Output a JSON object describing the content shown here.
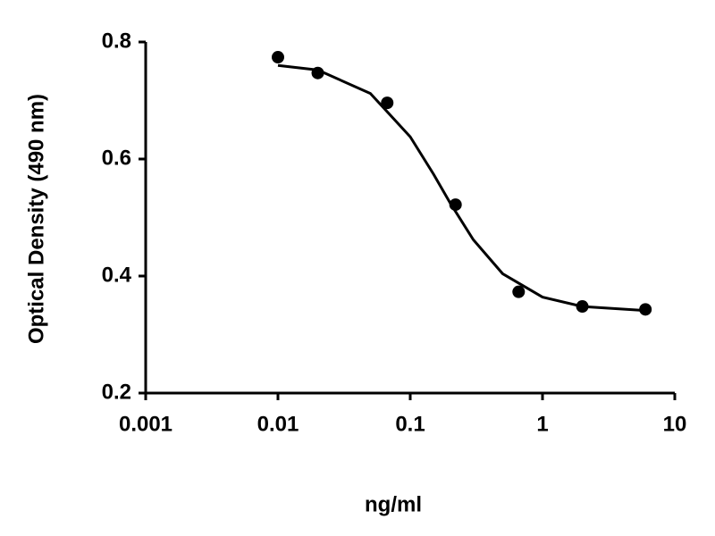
{
  "chart_data": {
    "type": "scatter",
    "xlabel": "ng/ml",
    "ylabel": "Optical Density (490 nm)",
    "xscale": "log",
    "xlim": [
      0.001,
      10
    ],
    "xticks": [
      0.001,
      0.01,
      0.1,
      1,
      10
    ],
    "ylim": [
      0.2,
      0.8
    ],
    "yticks": [
      0.2,
      0.4,
      0.6,
      0.8
    ],
    "series": [
      {
        "type": "scatter",
        "color": "#000000",
        "x": [
          0.01,
          0.02,
          0.067,
          0.22,
          0.66,
          2,
          6
        ],
        "values": [
          0.774,
          0.747,
          0.696,
          0.522,
          0.373,
          0.348,
          0.343
        ]
      },
      {
        "type": "line",
        "color": "#000000",
        "x": [
          0.01,
          0.02,
          0.05,
          0.1,
          0.15,
          0.2,
          0.3,
          0.5,
          1,
          2,
          6
        ],
        "values": [
          0.76,
          0.752,
          0.712,
          0.638,
          0.574,
          0.525,
          0.462,
          0.404,
          0.364,
          0.348,
          0.341
        ]
      }
    ]
  }
}
